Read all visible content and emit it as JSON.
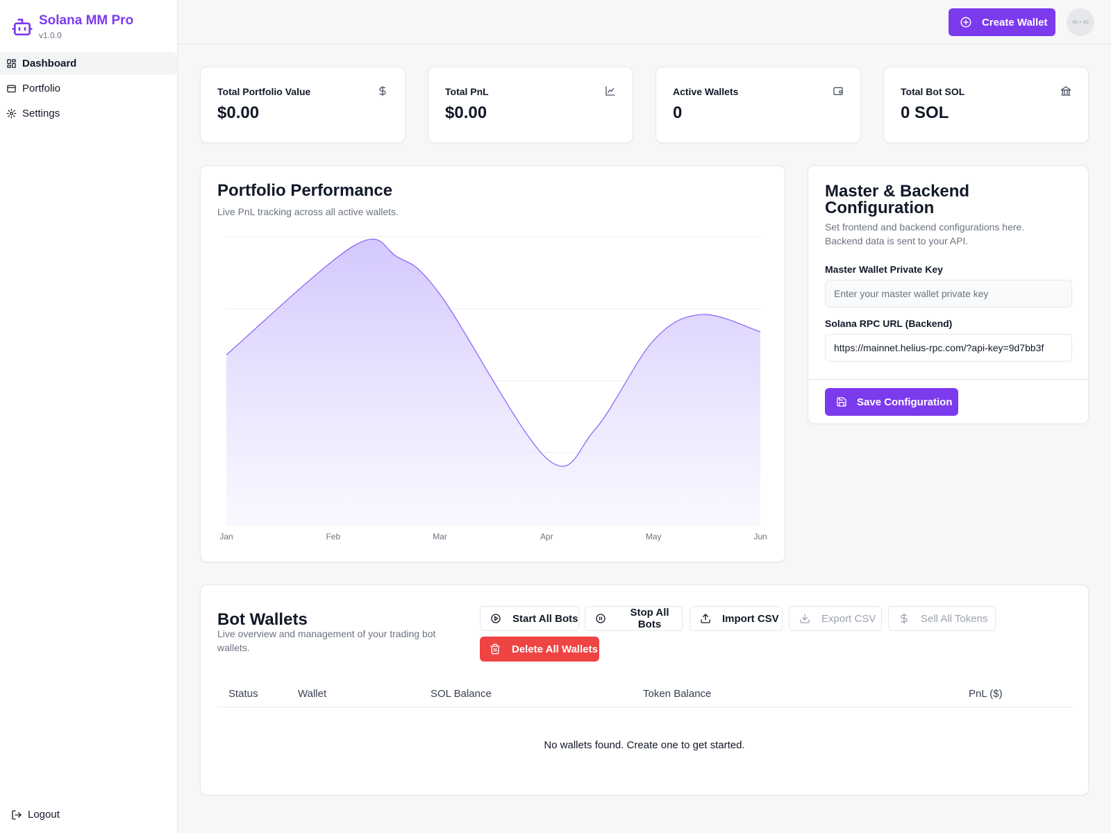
{
  "app": {
    "name": "Solana MM Pro",
    "version": "v1.0.0"
  },
  "sidebar": {
    "items": [
      {
        "label": "Dashboard",
        "icon": "grid-icon",
        "active": true
      },
      {
        "label": "Portfolio",
        "icon": "wallet-icon",
        "active": false
      },
      {
        "label": "Settings",
        "icon": "gear-icon",
        "active": false
      }
    ],
    "logout_label": "Logout"
  },
  "header": {
    "create_wallet_label": "Create Wallet",
    "avatar_text": "40 × 40"
  },
  "stats": [
    {
      "title": "Total Portfolio Value",
      "value": "$0.00",
      "icon": "dollar-icon"
    },
    {
      "title": "Total PnL",
      "value": "$0.00",
      "icon": "line-chart-icon"
    },
    {
      "title": "Active Wallets",
      "value": "0",
      "icon": "wallet-icon"
    },
    {
      "title": "Total Bot SOL",
      "value": "0 SOL",
      "icon": "bank-icon"
    }
  ],
  "performance": {
    "title": "Portfolio Performance",
    "subtitle": "Live PnL tracking across all active wallets."
  },
  "chart_data": {
    "type": "area",
    "title": "Portfolio Performance",
    "categories": [
      "Jan",
      "Feb",
      "Mar",
      "Apr",
      "May",
      "Jun"
    ],
    "x_positions": [
      0,
      1,
      2,
      3,
      4,
      5
    ],
    "curve": {
      "x": [
        0,
        1.2,
        1.6,
        2,
        3,
        3.45,
        4,
        4.45,
        5
      ],
      "y": [
        0.59,
        0.97,
        0.93,
        0.8,
        0.23,
        0.33,
        0.64,
        0.73,
        0.67
      ]
    },
    "ylim": [
      0,
      1
    ],
    "grid": true,
    "y_ticks_shown": false,
    "colors": {
      "line": "#8b5cf6",
      "fill_top": "#c4b5fd",
      "fill_bottom": "#f5f3ff"
    }
  },
  "config": {
    "title": "Master & Backend Configuration",
    "subtitle": "Set frontend and backend configurations here. Backend data is sent to your API.",
    "private_key_label": "Master Wallet Private Key",
    "private_key_placeholder": "Enter your master wallet private key",
    "rpc_label": "Solana RPC URL (Backend)",
    "rpc_value": "https://mainnet.helius-rpc.com/?api-key=9d7bb3f",
    "save_label": "Save Configuration"
  },
  "wallets": {
    "title": "Bot Wallets",
    "subtitle": "Live overview and management of your trading bot wallets.",
    "buttons": {
      "start_all": "Start All Bots",
      "stop_all": "Stop All Bots",
      "import_csv": "Import CSV",
      "export_csv": "Export CSV",
      "sell_all": "Sell All Tokens",
      "delete_all": "Delete All Wallets"
    },
    "columns": [
      "Status",
      "Wallet",
      "SOL Balance",
      "Token Balance",
      "PnL ($)"
    ],
    "empty_message": "No wallets found. Create one to get started."
  },
  "colors": {
    "accent": "#7c3aed",
    "danger": "#ef4444",
    "border": "#e5e7eb",
    "muted_text": "#6b7280"
  }
}
